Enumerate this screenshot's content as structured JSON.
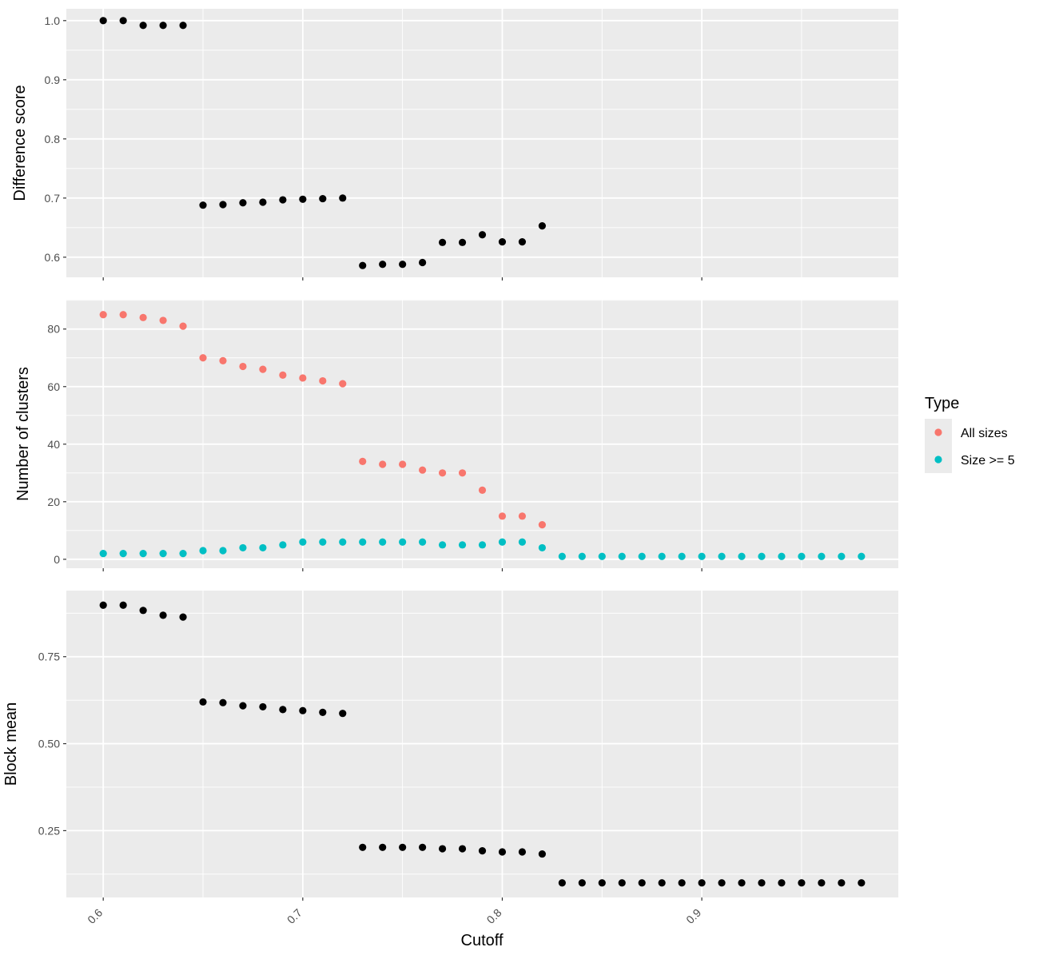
{
  "chart_data": {
    "type": "scatter",
    "xlabel": "Cutoff",
    "x_ticks": [
      0.6,
      0.7,
      0.8,
      0.9
    ],
    "x_tick_labels": [
      "0.6",
      "0.7",
      "0.8",
      "0.9"
    ],
    "xlim": [
      0.5815,
      0.9985
    ],
    "background_color": "#ebebeb",
    "grid": true,
    "legend": {
      "title": "Type",
      "placement": "right",
      "entries": [
        {
          "label": "All sizes",
          "color": "#F8766D"
        },
        {
          "label": "Size >= 5",
          "color": "#00BFC4"
        }
      ]
    },
    "panels": [
      {
        "ylabel": "Difference score",
        "ylim": [
          0.566,
          1.02
        ],
        "y_ticks": [
          0.6,
          0.7,
          0.8,
          0.9,
          1.0
        ],
        "y_tick_labels": [
          "0.6",
          "0.7",
          "0.8",
          "0.9",
          "1.0"
        ],
        "series": [
          {
            "color": "#000000",
            "x": [
              0.6,
              0.61,
              0.62,
              0.63,
              0.64,
              0.65,
              0.66,
              0.67,
              0.68,
              0.69,
              0.7,
              0.71,
              0.72,
              0.73,
              0.74,
              0.75,
              0.76,
              0.77,
              0.78,
              0.79,
              0.8,
              0.81,
              0.82
            ],
            "y": [
              1.0,
              1.0,
              0.992,
              0.992,
              0.992,
              0.688,
              0.689,
              0.692,
              0.693,
              0.697,
              0.698,
              0.699,
              0.7,
              0.586,
              0.588,
              0.588,
              0.591,
              0.625,
              0.625,
              0.638,
              0.626,
              0.626,
              0.653
            ]
          }
        ]
      },
      {
        "ylabel": "Number of clusters",
        "ylim": [
          -3.1,
          90.2
        ],
        "y_ticks": [
          0,
          20,
          40,
          60,
          80
        ],
        "y_tick_labels": [
          "0",
          "20",
          "40",
          "60",
          "80"
        ],
        "series": [
          {
            "name": "All sizes",
            "color": "#F8766D",
            "x": [
              0.6,
              0.61,
              0.62,
              0.63,
              0.64,
              0.65,
              0.66,
              0.67,
              0.68,
              0.69,
              0.7,
              0.71,
              0.72,
              0.73,
              0.74,
              0.75,
              0.76,
              0.77,
              0.78,
              0.79,
              0.8,
              0.81,
              0.82
            ],
            "y": [
              85,
              85,
              84,
              83,
              81,
              70,
              69,
              67,
              66,
              64,
              63,
              62,
              61,
              34,
              33,
              33,
              31,
              30,
              30,
              24,
              15,
              15,
              12
            ]
          },
          {
            "name": "Size >= 5",
            "color": "#00BFC4",
            "x": [
              0.6,
              0.61,
              0.62,
              0.63,
              0.64,
              0.65,
              0.66,
              0.67,
              0.68,
              0.69,
              0.7,
              0.71,
              0.72,
              0.73,
              0.74,
              0.75,
              0.76,
              0.77,
              0.78,
              0.79,
              0.8,
              0.81,
              0.82,
              0.83,
              0.84,
              0.85,
              0.86,
              0.87,
              0.88,
              0.89,
              0.9,
              0.91,
              0.92,
              0.93,
              0.94,
              0.95,
              0.96,
              0.97,
              0.98
            ],
            "y": [
              2,
              2,
              2,
              2,
              2,
              3,
              3,
              4,
              4,
              5,
              6,
              6,
              6,
              6,
              6,
              6,
              6,
              5,
              5,
              5,
              6,
              6,
              4,
              1,
              1,
              1,
              1,
              1,
              1,
              1,
              1,
              1,
              1,
              1,
              1,
              1,
              1,
              1,
              1
            ]
          }
        ]
      },
      {
        "ylabel": "Block mean",
        "ylim": [
          0.058,
          0.94
        ],
        "y_ticks": [
          0.25,
          0.5,
          0.75
        ],
        "y_tick_labels": [
          "0.25",
          "0.50",
          "0.75"
        ],
        "series": [
          {
            "color": "#000000",
            "x": [
              0.6,
              0.61,
              0.62,
              0.63,
              0.64,
              0.65,
              0.66,
              0.67,
              0.68,
              0.69,
              0.7,
              0.71,
              0.72,
              0.73,
              0.74,
              0.75,
              0.76,
              0.77,
              0.78,
              0.79,
              0.8,
              0.81,
              0.82,
              0.83,
              0.84,
              0.85,
              0.86,
              0.87,
              0.88,
              0.89,
              0.9,
              0.91,
              0.92,
              0.93,
              0.94,
              0.95,
              0.96,
              0.97,
              0.98
            ],
            "y": [
              0.898,
              0.898,
              0.883,
              0.869,
              0.864,
              0.62,
              0.618,
              0.609,
              0.606,
              0.598,
              0.595,
              0.59,
              0.587,
              0.202,
              0.202,
              0.202,
              0.202,
              0.198,
              0.198,
              0.192,
              0.189,
              0.189,
              0.183,
              0.1,
              0.1,
              0.1,
              0.1,
              0.1,
              0.1,
              0.1,
              0.1,
              0.1,
              0.1,
              0.1,
              0.1,
              0.1,
              0.1,
              0.1,
              0.1
            ]
          }
        ]
      }
    ]
  }
}
